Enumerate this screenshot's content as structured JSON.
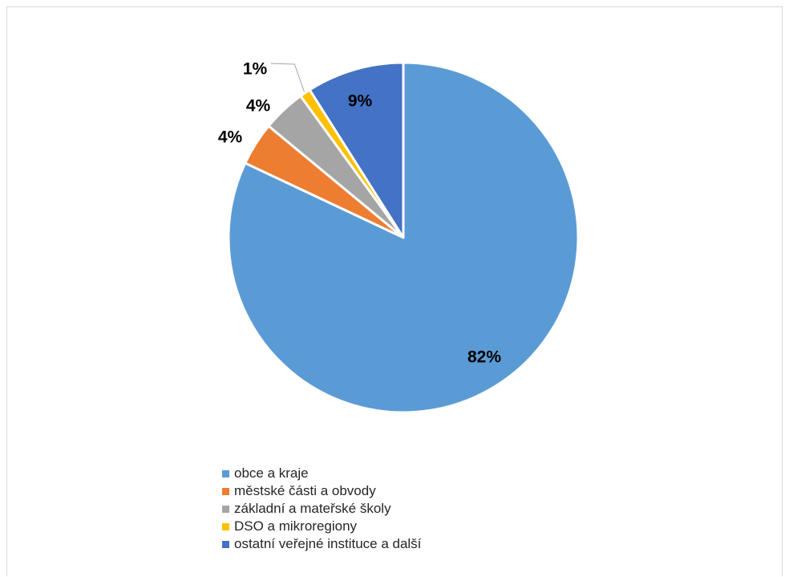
{
  "chart_data": {
    "type": "pie",
    "categories": [
      "obce a kraje",
      "městské části a obvody",
      "základní a mateřské školy",
      "DSO a mikroregiony",
      "ostatní veřejné instituce a další"
    ],
    "values": [
      82,
      4,
      4,
      1,
      9
    ],
    "labels": [
      "82%",
      "4%",
      "4%",
      "1%",
      "9%"
    ],
    "colors": [
      "#5b9bd5",
      "#ed7d31",
      "#a5a5a5",
      "#ffc000",
      "#4472c4"
    ],
    "start_angle_deg": 0,
    "direction": "clockwise",
    "legend_position": "bottom-left"
  }
}
